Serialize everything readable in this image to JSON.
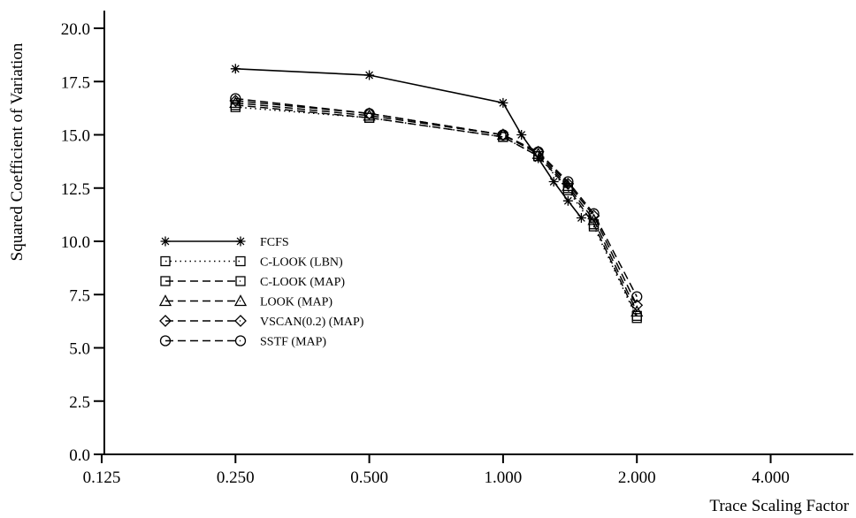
{
  "chart_data": {
    "type": "line",
    "xlabel": "Trace Scaling Factor",
    "ylabel": "Squared Coefficient of Variation",
    "xscale": "log2",
    "xlim": [
      0.125,
      5.6
    ],
    "ylim": [
      0,
      21
    ],
    "xticks": [
      "0.125",
      "0.250",
      "0.500",
      "1.000",
      "2.000",
      "4.000"
    ],
    "yticks": [
      "0.0",
      "2.5",
      "5.0",
      "7.5",
      "10.0",
      "12.5",
      "15.0",
      "17.5",
      "20.0"
    ],
    "legend_position": "left-center",
    "grid": false,
    "series": [
      {
        "name": "FCFS",
        "marker": "asterisk",
        "line": "solid",
        "x": [
          0.25,
          0.5,
          1.0,
          1.1,
          1.2,
          1.3,
          1.4,
          1.5
        ],
        "y": [
          18.1,
          17.8,
          16.5,
          15.0,
          13.9,
          12.8,
          11.9,
          11.1
        ]
      },
      {
        "name": "C-LOOK (LBN)",
        "marker": "square",
        "line": "dotted",
        "x": [
          0.25,
          0.5,
          1.0,
          1.2,
          1.4,
          1.6,
          2.0
        ],
        "y": [
          16.3,
          15.8,
          14.9,
          14.0,
          12.4,
          10.7,
          6.4
        ]
      },
      {
        "name": "C-LOOK (MAP)",
        "marker": "square",
        "line": "dashed",
        "x": [
          0.25,
          0.5,
          1.0,
          1.2,
          1.4,
          1.6,
          2.0
        ],
        "y": [
          16.4,
          15.8,
          14.9,
          14.0,
          12.5,
          10.8,
          6.5
        ]
      },
      {
        "name": "LOOK (MAP)",
        "marker": "triangle",
        "line": "dashed",
        "x": [
          0.25,
          0.5,
          1.0,
          1.2,
          1.4,
          1.6,
          2.0
        ],
        "y": [
          16.5,
          15.9,
          15.0,
          14.1,
          12.6,
          11.0,
          6.7
        ]
      },
      {
        "name": "VSCAN(0.2) (MAP)",
        "marker": "diamond",
        "line": "dashed",
        "x": [
          0.25,
          0.5,
          1.0,
          1.2,
          1.4,
          1.6,
          2.0
        ],
        "y": [
          16.6,
          16.0,
          15.0,
          14.2,
          12.7,
          11.2,
          7.0
        ]
      },
      {
        "name": "SSTF (MAP)",
        "marker": "circle",
        "line": "dashed",
        "x": [
          0.25,
          0.5,
          1.0,
          1.2,
          1.4,
          1.6,
          2.0
        ],
        "y": [
          16.7,
          16.0,
          15.0,
          14.2,
          12.8,
          11.3,
          7.4
        ]
      }
    ]
  }
}
